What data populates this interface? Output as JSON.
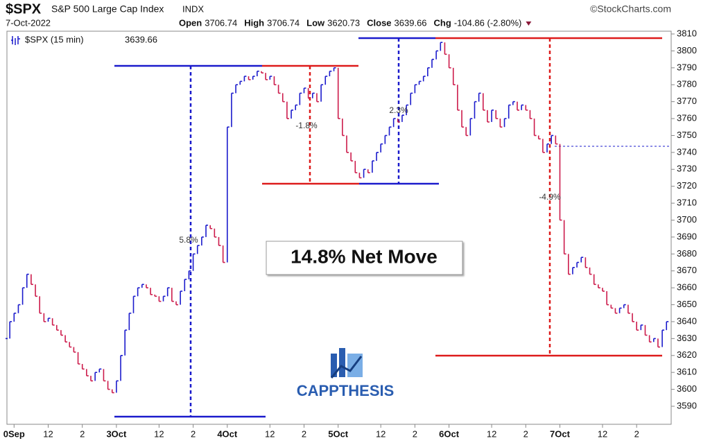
{
  "header": {
    "symbol": "$SPX",
    "name": "S&P 500 Large Cap Index",
    "exchange": "INDX",
    "copyright": "©StockCharts.com",
    "date": "7-Oct-2022",
    "stats": [
      {
        "label": "Open",
        "value": "3706.74"
      },
      {
        "label": "High",
        "value": "3706.74"
      },
      {
        "label": "Low",
        "value": "3620.73"
      },
      {
        "label": "Close",
        "value": "3639.66"
      },
      {
        "label": "Chg",
        "value": "-104.86 (-2.80%)"
      }
    ]
  },
  "chart_data": {
    "type": "bar",
    "last_value": "3639.66",
    "annotations": [
      "5.8%",
      "-1.8%",
      "2.3%",
      "-4.9%",
      "14.8% Net Move"
    ],
    "logo": "CAPPTHESIS",
    "xlim": [
      -1.3,
      156.1
    ],
    "xticks": [
      {
        "value": 2,
        "label": "0Sep"
      },
      {
        "value": 10,
        "label": "12"
      },
      {
        "value": 18,
        "label": "2"
      },
      {
        "value": 26,
        "label": "3Oct"
      },
      {
        "value": 36,
        "label": "12"
      },
      {
        "value": 44,
        "label": "2"
      },
      {
        "value": 52,
        "label": "4Oct"
      },
      {
        "value": 62,
        "label": "12"
      },
      {
        "value": 70,
        "label": "2"
      },
      {
        "value": 78,
        "label": "5Oct"
      },
      {
        "value": 88,
        "label": "12"
      },
      {
        "value": 96,
        "label": "2"
      },
      {
        "value": 104,
        "label": "6Oct"
      },
      {
        "value": 114,
        "label": "12"
      },
      {
        "value": 122,
        "label": "2"
      },
      {
        "value": 130,
        "label": "7Oct"
      },
      {
        "value": 140,
        "label": "12"
      },
      {
        "value": 148,
        "label": "2"
      }
    ],
    "ylim": [
      3590,
      3810
    ],
    "yticks": [
      3590,
      3600,
      3610,
      3620,
      3630,
      3640,
      3650,
      3660,
      3670,
      3680,
      3690,
      3700,
      3710,
      3720,
      3730,
      3740,
      3750,
      3760,
      3770,
      3780,
      3790,
      3800,
      3810
    ],
    "series": [
      {
        "name": "$SPX (15 min)",
        "color": "#1a1acc",
        "down_color": "#cc1a4a",
        "values": [
          3630,
          3640,
          3645,
          3650,
          3660,
          3668,
          3662,
          3655,
          3645,
          3640,
          3642,
          3638,
          3635,
          3632,
          3628,
          3625,
          3622,
          3615,
          3612,
          3608,
          3605,
          3610,
          3612,
          3605,
          3600,
          3598,
          3605,
          3620,
          3635,
          3645,
          3655,
          3660,
          3662,
          3660,
          3656,
          3655,
          3652,
          3655,
          3660,
          3652,
          3650,
          3658,
          3665,
          3670,
          3680,
          3685,
          3690,
          3697,
          3695,
          3690,
          3685,
          3675,
          3755,
          3775,
          3780,
          3782,
          3785,
          3783,
          3785,
          3788,
          3787,
          3783,
          3785,
          3780,
          3775,
          3770,
          3760,
          3765,
          3768,
          3775,
          3778,
          3772,
          3775,
          3770,
          3780,
          3785,
          3788,
          3790,
          3760,
          3750,
          3740,
          3735,
          3728,
          3725,
          3730,
          3728,
          3735,
          3740,
          3745,
          3750,
          3755,
          3760,
          3758,
          3762,
          3768,
          3775,
          3780,
          3782,
          3785,
          3790,
          3795,
          3800,
          3805,
          3798,
          3790,
          3780,
          3765,
          3755,
          3750,
          3760,
          3770,
          3775,
          3765,
          3758,
          3765,
          3760,
          3755,
          3760,
          3768,
          3770,
          3765,
          3768,
          3765,
          3760,
          3750,
          3748,
          3740,
          3745,
          3750,
          3745,
          3700,
          3680,
          3668,
          3672,
          3675,
          3678,
          3672,
          3668,
          3662,
          3660,
          3658,
          3650,
          3648,
          3645,
          3648,
          3650,
          3645,
          3640,
          3635,
          3638,
          3632,
          3628,
          3630,
          3625,
          3635,
          3640
        ]
      }
    ]
  }
}
